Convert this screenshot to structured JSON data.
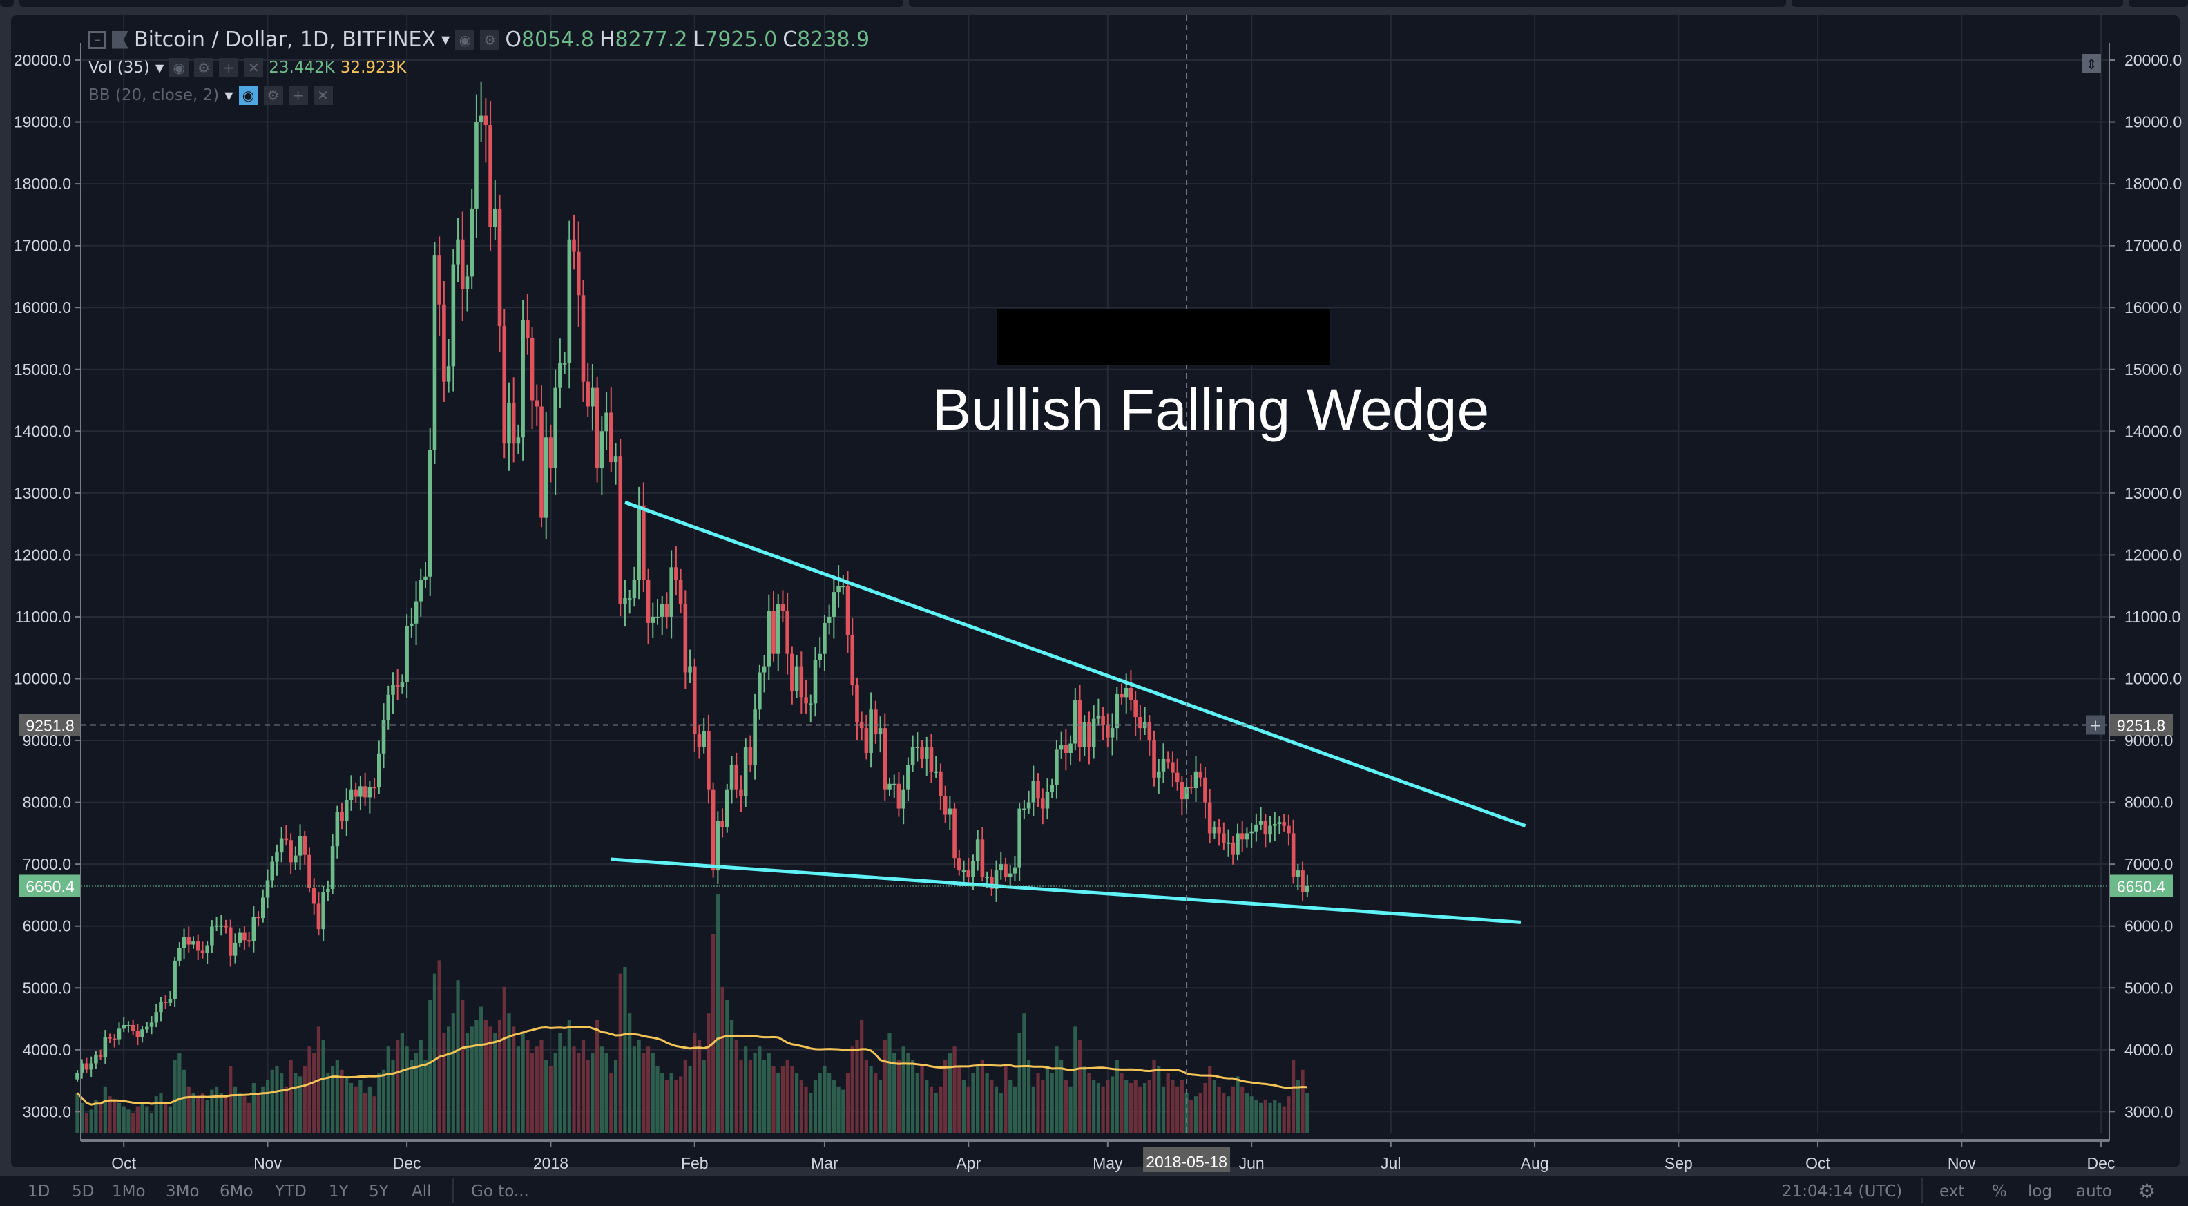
{
  "legend": {
    "symbol": "Bitcoin / Dollar, 1D, BITFINEX",
    "open_label": "O",
    "open": "8054.8",
    "high_label": "H",
    "high": "8277.2",
    "low_label": "L",
    "low": "7925.0",
    "close_label": "C",
    "close": "8238.9",
    "volume_name": "Vol (35)",
    "volume_value": "23.442K",
    "volume_ma": "32.923K",
    "bb_name": "BB (20, close, 2)"
  },
  "annotation": "Bullish Falling Wedge",
  "price_axis": {
    "ticks": [
      "20000.0",
      "19000.0",
      "18000.0",
      "17000.0",
      "16000.0",
      "15000.0",
      "14000.0",
      "13000.0",
      "12000.0",
      "11000.0",
      "10000.0",
      "9000.0",
      "8000.0",
      "7000.0",
      "6000.0",
      "5000.0",
      "4000.0",
      "3000.0"
    ],
    "crosshair_label": "9251.8",
    "last_price_label": "6650.4"
  },
  "time_axis": {
    "ticks": [
      "Oct",
      "Nov",
      "Dec",
      "2018",
      "Feb",
      "Mar",
      "Apr",
      "May",
      "Jun",
      "Jul",
      "Aug",
      "Sep",
      "Oct",
      "Nov",
      "Dec"
    ],
    "crosshair_label": "2018-05-18"
  },
  "bottom_bar": {
    "ranges": [
      "1D",
      "5D",
      "1Mo",
      "3Mo",
      "6Mo",
      "YTD",
      "1Y",
      "5Y",
      "All"
    ],
    "goto": "Go to...",
    "clock": "21:04:14 (UTC)",
    "options": [
      "ext",
      "%",
      "log",
      "auto"
    ]
  },
  "colors": {
    "up": "#6dba8a",
    "down": "#e0535d",
    "trendline": "#5ff3f7",
    "volume_ma": "#f5c457",
    "background": "#131722",
    "grid": "#262a36"
  },
  "chart_data": {
    "type": "candlestick",
    "start_date": "2017-09-21",
    "interval": "1D",
    "ylim": [
      2500,
      20500
    ],
    "close": [
      3630,
      3780,
      3680,
      3780,
      3920,
      3880,
      4210,
      4180,
      4170,
      4340,
      4400,
      4400,
      4310,
      4210,
      4330,
      4370,
      4440,
      4610,
      4780,
      4760,
      4820,
      5440,
      5640,
      5820,
      5700,
      5750,
      5600,
      5570,
      5690,
      5990,
      6010,
      6010,
      5980,
      5520,
      5730,
      5890,
      5770,
      5760,
      6150,
      6130,
      6460,
      6740,
      7040,
      7190,
      7420,
      7390,
      7030,
      7140,
      7450,
      7150,
      6620,
      6360,
      5950,
      6550,
      6600,
      7290,
      7850,
      7700,
      8040,
      8200,
      8090,
      8260,
      8080,
      8250,
      8240,
      8790,
      9330,
      9740,
      9900,
      9870,
      9950,
      10850,
      10890,
      11250,
      11600,
      11650,
      13700,
      16850,
      16050,
      14800,
      15050,
      16700,
      17100,
      16300,
      16500,
      17600,
      19000,
      19100,
      18950,
      17300,
      17600,
      15700,
      13800,
      14450,
      13800,
      13900,
      15800,
      15500,
      14500,
      14400,
      12600,
      13900,
      13400,
      14700,
      15100,
      15100,
      17100,
      16900,
      16200,
      14800,
      14400,
      14700,
      13400,
      14000,
      14300,
      13500,
      13600,
      11200,
      11300,
      11300,
      11600,
      12800,
      11600,
      10900,
      11000,
      11000,
      11200,
      11000,
      11800,
      11600,
      11200,
      10100,
      10200,
      9100,
      8900,
      9150,
      8200,
      6900,
      7700,
      7600,
      8200,
      8600,
      8200,
      8100,
      8900,
      8600,
      9500,
      10100,
      10200,
      11100,
      10400,
      11200,
      11100,
      10400,
      9800,
      10200,
      9700,
      9600,
      9600,
      10300,
      10400,
      10900,
      11000,
      11400,
      11500,
      11500,
      10700,
      9900,
      9300,
      9200,
      8800,
      9500,
      9100,
      9200,
      8200,
      8300,
      8300,
      7900,
      8200,
      8600,
      8900,
      8900,
      8700,
      8900,
      8500,
      8500,
      8100,
      7800,
      7900,
      7100,
      6900,
      6900,
      6800,
      7050,
      7400,
      6800,
      6800,
      6600,
      6900,
      7000,
      6800,
      6850,
      6950,
      7900,
      7900,
      8000,
      8350,
      8060,
      7900,
      8170,
      8280,
      8850,
      8930,
      8800,
      8950,
      9650,
      8900,
      9300,
      8900,
      9350,
      9400,
      9250,
      9050,
      9200,
      9750,
      9700,
      9850,
      9650,
      9380,
      9200,
      9300,
      9000,
      8400,
      8500,
      8700,
      8650,
      8480,
      8330,
      8050,
      8250,
      8230,
      8500,
      8400,
      8000,
      7500,
      7600,
      7500,
      7350,
      7350,
      7150,
      7500,
      7400,
      7500,
      7530,
      7640,
      7700,
      7480,
      7620,
      7650,
      7680,
      7620,
      7500,
      6800,
      6900,
      6550,
      6650.4
    ],
    "volume": [
      60,
      45,
      30,
      35,
      50,
      45,
      70,
      55,
      50,
      45,
      40,
      35,
      30,
      40,
      45,
      40,
      30,
      55,
      60,
      45,
      40,
      110,
      120,
      95,
      70,
      60,
      55,
      60,
      50,
      65,
      70,
      60,
      55,
      100,
      70,
      60,
      55,
      45,
      75,
      60,
      70,
      80,
      95,
      100,
      90,
      70,
      110,
      90,
      85,
      100,
      130,
      120,
      160,
      140,
      90,
      100,
      110,
      95,
      85,
      75,
      70,
      80,
      60,
      70,
      55,
      90,
      95,
      130,
      110,
      140,
      150,
      130,
      110,
      120,
      140,
      110,
      200,
      240,
      260,
      150,
      160,
      180,
      230,
      200,
      150,
      160,
      170,
      190,
      170,
      160,
      150,
      170,
      220,
      180,
      160,
      130,
      150,
      140,
      120,
      130,
      140,
      110,
      100,
      120,
      150,
      130,
      170,
      130,
      120,
      140,
      110,
      120,
      170,
      130,
      120,
      90,
      110,
      240,
      250,
      180,
      130,
      140,
      120,
      130,
      120,
      100,
      90,
      80,
      90,
      80,
      85,
      110,
      100,
      150,
      140,
      110,
      180,
      300,
      360,
      220,
      200,
      170,
      140,
      110,
      130,
      110,
      120,
      130,
      110,
      120,
      100,
      90,
      100,
      110,
      100,
      90,
      80,
      70,
      60,
      80,
      90,
      100,
      90,
      80,
      70,
      65,
      90,
      130,
      140,
      170,
      110,
      100,
      90,
      80,
      140,
      150,
      120,
      110,
      130,
      120,
      110,
      90,
      100,
      80,
      70,
      60,
      70,
      110,
      120,
      130,
      100,
      80,
      70,
      90,
      100,
      110,
      90,
      80,
      70,
      60,
      100,
      80,
      70,
      150,
      180,
      110,
      70,
      90,
      80,
      100,
      90,
      130,
      110,
      80,
      70,
      160,
      140,
      100,
      90,
      80,
      75,
      70,
      80,
      85,
      110,
      90,
      80,
      75,
      80,
      70,
      75,
      80,
      110,
      100,
      70,
      90,
      80,
      70,
      80,
      60,
      50,
      55,
      60,
      75,
      100,
      80,
      70,
      60,
      55,
      70,
      85,
      70,
      60,
      55,
      50,
      45,
      50,
      45,
      50,
      45,
      40,
      55,
      110,
      80,
      95,
      60
    ],
    "volume_ma_length": 35,
    "trendlines": [
      {
        "from": {
          "date": "2018-01-17",
          "price": 12850
        },
        "to": {
          "date": "2018-07-30",
          "price": 7620
        }
      },
      {
        "from": {
          "date": "2018-01-14",
          "price": 7080
        },
        "to": {
          "date": "2018-07-29",
          "price": 6060
        }
      }
    ],
    "crosshair": {
      "date": "2018-05-18",
      "price": 9251.8
    },
    "grid": true
  }
}
